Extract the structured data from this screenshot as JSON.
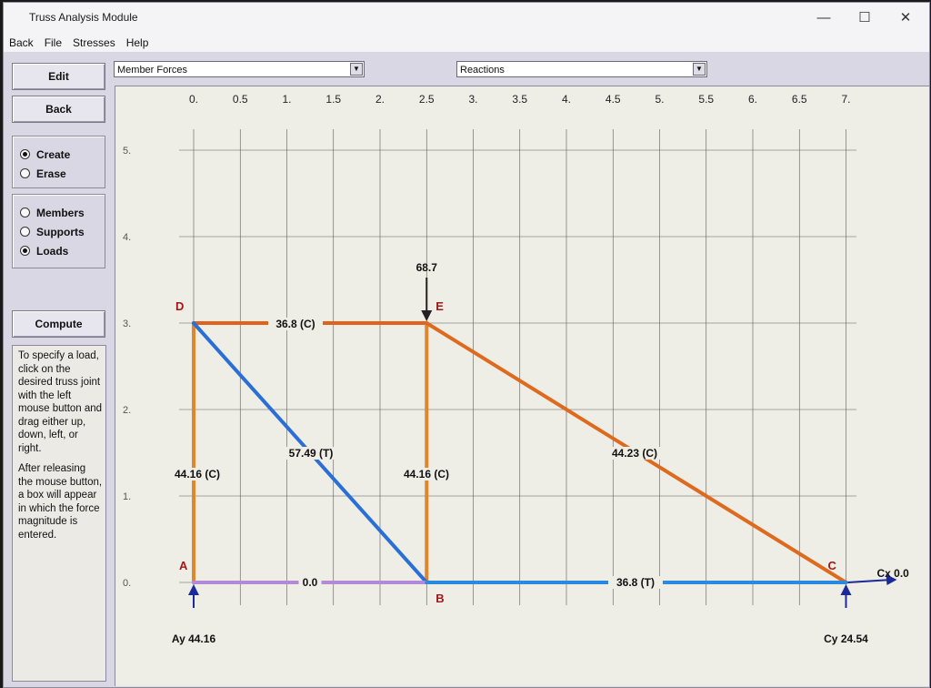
{
  "window": {
    "title": "Truss Analysis Module",
    "controls": {
      "minimize": "—",
      "maximize": "☐",
      "close": "✕"
    }
  },
  "menu": [
    "Back",
    "File",
    "Stresses",
    "Help"
  ],
  "buttons": {
    "edit": "Edit",
    "back": "Back",
    "compute": "Compute"
  },
  "mode_group": [
    {
      "label": "Create",
      "selected": true
    },
    {
      "label": "Erase",
      "selected": false
    }
  ],
  "entity_group": [
    {
      "label": "Members",
      "selected": false
    },
    {
      "label": "Supports",
      "selected": false
    },
    {
      "label": "Loads",
      "selected": true
    }
  ],
  "help_text": {
    "p1": "To specify a load, click on the desired truss joint with the left mouse button and drag either up, down, left, or right.",
    "p2": "After releasing the mouse button, a box will appear in which the force magnitude is entered."
  },
  "dropdowns": {
    "forces": "Member Forces",
    "reactions": "Reactions"
  },
  "grid": {
    "x_ticks": [
      "0.",
      "0.5",
      "1.",
      "1.5",
      "2.",
      "2.5",
      "3.",
      "3.5",
      "4.",
      "4.5",
      "5.",
      "5.5",
      "6.",
      "6.5",
      "7."
    ],
    "y_ticks": [
      "0.",
      "1.",
      "2.",
      "3.",
      "4.",
      "5."
    ]
  },
  "joints": [
    {
      "id": "A",
      "x": 0,
      "y": 0
    },
    {
      "id": "B",
      "x": 2.5,
      "y": 0
    },
    {
      "id": "C",
      "x": 7,
      "y": 0
    },
    {
      "id": "D",
      "x": 0,
      "y": 3
    },
    {
      "id": "E",
      "x": 2.5,
      "y": 3
    }
  ],
  "members": [
    {
      "from": "D",
      "to": "E",
      "label": "36.8 (C)",
      "color": "#e0621c"
    },
    {
      "from": "A",
      "to": "D",
      "label": "44.16 (C)",
      "color": "#e0862c"
    },
    {
      "from": "B",
      "to": "E",
      "label": "44.16 (C)",
      "color": "#e0862c"
    },
    {
      "from": "D",
      "to": "B",
      "label": "57.49 (T)",
      "color": "#2a6fd6"
    },
    {
      "from": "E",
      "to": "C",
      "label": "44.23 (C)",
      "color": "#de6a1e"
    },
    {
      "from": "A",
      "to": "B",
      "label": "0.0",
      "color": "#b48ad8"
    },
    {
      "from": "B",
      "to": "C",
      "label": "36.8 (T)",
      "color": "#2a8ae0"
    }
  ],
  "load": {
    "joint": "E",
    "value": "68.7"
  },
  "reactions": [
    {
      "label": "Ay 44.16",
      "joint": "A"
    },
    {
      "label": "Cy 24.54",
      "joint": "C"
    },
    {
      "label": "Cx 0.0",
      "joint": "C"
    }
  ],
  "colors": {
    "grid": "#5a5a5a",
    "reaction_arrow": "#1a2a9a",
    "load_arrow": "#222222"
  }
}
